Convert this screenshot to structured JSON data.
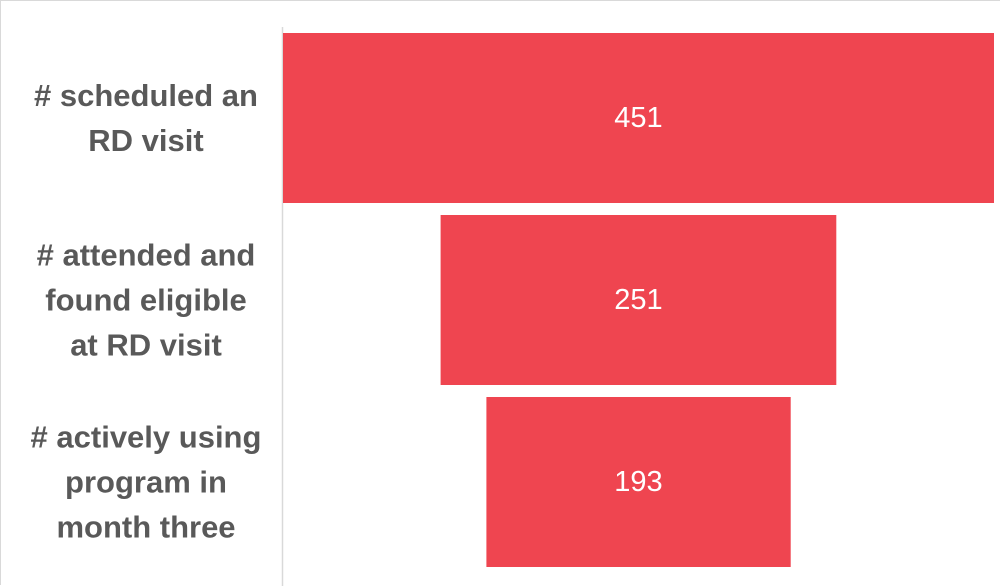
{
  "chart_data": {
    "type": "bar",
    "subtype": "funnel",
    "title": "",
    "xlabel": "",
    "ylabel": "",
    "categories": [
      "# scheduled an RD visit",
      "# attended and found eligible at RD visit",
      "# actively using program in month three"
    ],
    "category_lines": [
      [
        "# scheduled an",
        "RD visit"
      ],
      [
        "# attended and",
        "found eligible",
        "at RD visit"
      ],
      [
        "# actively using",
        "program in",
        "month three"
      ]
    ],
    "values": [
      451,
      251,
      193
    ],
    "data_labels": [
      "451",
      "251",
      "193"
    ],
    "xlim": [
      0,
      451
    ],
    "bar_color": "#EF4550",
    "label_color": "#595959",
    "value_label_color": "#FFFFFF",
    "grid": false,
    "legend": "none"
  }
}
